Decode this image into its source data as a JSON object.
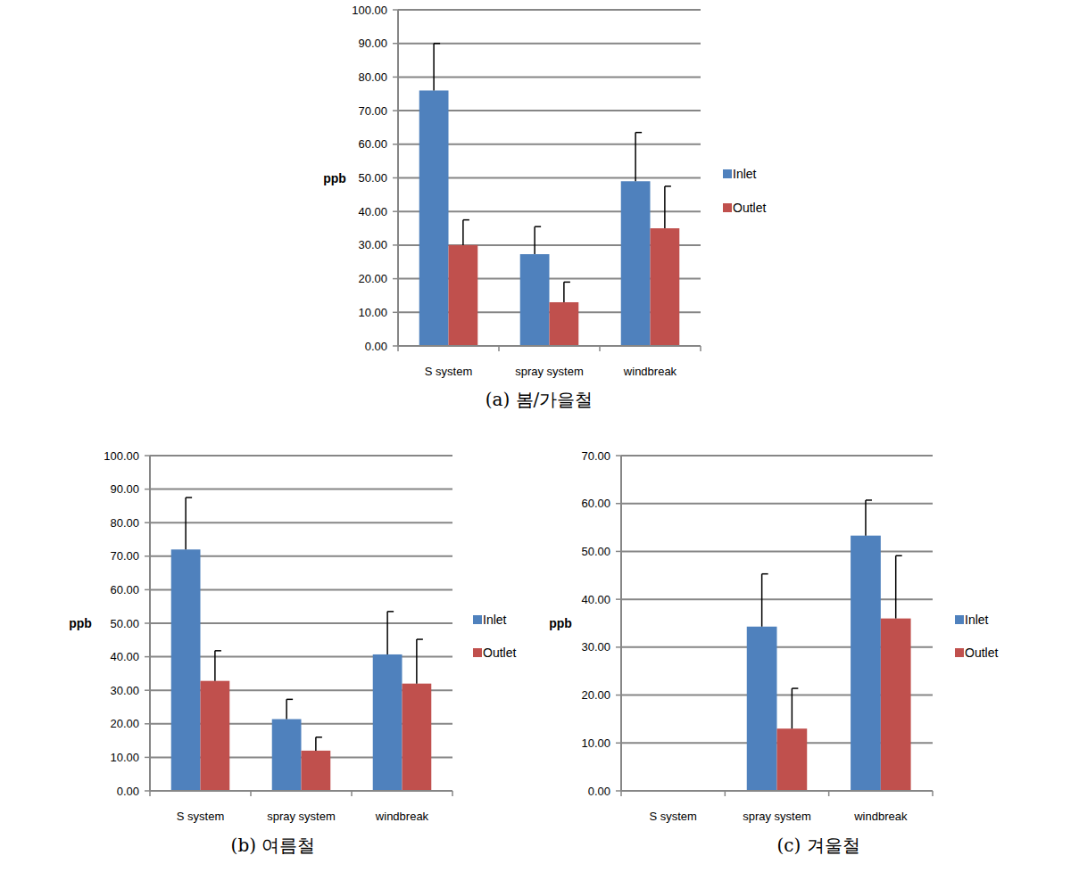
{
  "chart_data": [
    {
      "type": "bar",
      "title": "(a) 봄/가을철",
      "y_label": "ppb",
      "categories": [
        "S system",
        "spray system",
        "windbreak"
      ],
      "series": [
        {
          "name": "Inlet",
          "color": "#4f81bd",
          "values": [
            76,
            27.3,
            49
          ],
          "errors": [
            14,
            8.2,
            14.5
          ]
        },
        {
          "name": "Outlet",
          "color": "#c0504d",
          "values": [
            30,
            13,
            35
          ],
          "errors": [
            7.5,
            6,
            12.5
          ]
        }
      ],
      "ylim": [
        0,
        100
      ],
      "yticks": [
        {
          "value": 0,
          "label": "0.00"
        },
        {
          "value": 10,
          "label": "10.00"
        },
        {
          "value": 20,
          "label": "20.00"
        },
        {
          "value": 30,
          "label": "30.00"
        },
        {
          "value": 40,
          "label": "40.00"
        },
        {
          "value": 50,
          "label": "50.00"
        },
        {
          "value": 60,
          "label": "60.00"
        },
        {
          "value": 70,
          "label": "70.00"
        },
        {
          "value": 80,
          "label": "80.00"
        },
        {
          "value": 90,
          "label": "90.00"
        },
        {
          "value": 100,
          "label": "100.00"
        }
      ],
      "grid": true,
      "legend": "right"
    },
    {
      "type": "bar",
      "title": "(b) 여름철",
      "y_label": "ppb",
      "categories": [
        "S system",
        "spray system",
        "windbreak"
      ],
      "series": [
        {
          "name": "Inlet",
          "color": "#4f81bd",
          "values": [
            72,
            21.4,
            40.7
          ],
          "errors": [
            15.5,
            5.9,
            12.8
          ]
        },
        {
          "name": "Outlet",
          "color": "#c0504d",
          "values": [
            32.8,
            12,
            32
          ],
          "errors": [
            9,
            4,
            13.2
          ]
        }
      ],
      "ylim": [
        0,
        100
      ],
      "yticks": [
        {
          "value": 0,
          "label": "0.00"
        },
        {
          "value": 10,
          "label": "10.00"
        },
        {
          "value": 20,
          "label": "20.00"
        },
        {
          "value": 30,
          "label": "30.00"
        },
        {
          "value": 40,
          "label": "40.00"
        },
        {
          "value": 50,
          "label": "50.00"
        },
        {
          "value": 60,
          "label": "60.00"
        },
        {
          "value": 70,
          "label": "70.00"
        },
        {
          "value": 80,
          "label": "80.00"
        },
        {
          "value": 90,
          "label": "90.00"
        },
        {
          "value": 100,
          "label": "100.00"
        }
      ],
      "grid": true,
      "legend": "right"
    },
    {
      "type": "bar",
      "title": "(c) 겨울철",
      "y_label": "ppb",
      "categories": [
        "S system",
        "spray system",
        "windbreak"
      ],
      "series": [
        {
          "name": "Inlet",
          "color": "#4f81bd",
          "values": [
            null,
            34.3,
            53.3
          ],
          "errors": [
            null,
            11,
            7.4
          ]
        },
        {
          "name": "Outlet",
          "color": "#c0504d",
          "values": [
            null,
            13,
            36
          ],
          "errors": [
            null,
            8.4,
            13.1
          ]
        }
      ],
      "ylim": [
        0,
        70
      ],
      "yticks": [
        {
          "value": 0,
          "label": "0.00"
        },
        {
          "value": 10,
          "label": "10.00"
        },
        {
          "value": 20,
          "label": "20.00"
        },
        {
          "value": 30,
          "label": "30.00"
        },
        {
          "value": 40,
          "label": "40.00"
        },
        {
          "value": 50,
          "label": "50.00"
        },
        {
          "value": 60,
          "label": "60.00"
        },
        {
          "value": 70,
          "label": "70.00"
        }
      ],
      "grid": true,
      "legend": "right"
    }
  ]
}
